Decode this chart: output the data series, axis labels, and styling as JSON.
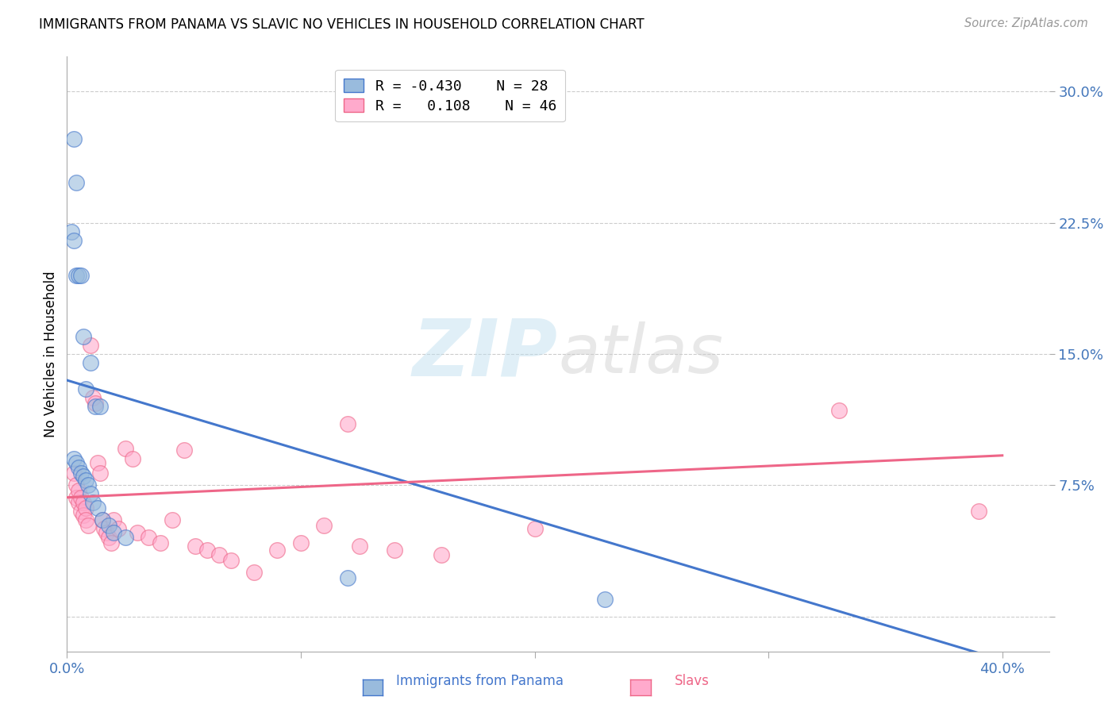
{
  "title": "IMMIGRANTS FROM PANAMA VS SLAVIC NO VEHICLES IN HOUSEHOLD CORRELATION CHART",
  "source": "Source: ZipAtlas.com",
  "ylabel": "No Vehicles in Household",
  "ytick_vals": [
    0.0,
    0.075,
    0.15,
    0.225,
    0.3
  ],
  "ytick_labels": [
    "",
    "7.5%",
    "15.0%",
    "22.5%",
    "30.0%"
  ],
  "xtick_vals": [
    0.0,
    0.1,
    0.2,
    0.3,
    0.4
  ],
  "xtick_labels": [
    "0.0%",
    "",
    "",
    "",
    "40.0%"
  ],
  "xlim": [
    0.0,
    0.42
  ],
  "ylim": [
    -0.02,
    0.32
  ],
  "color_blue": "#99BBDD",
  "color_pink": "#FFAACC",
  "color_line_blue": "#4477CC",
  "color_line_pink": "#EE6688",
  "color_tick_label": "#4477BB",
  "watermark_zip": "ZIP",
  "watermark_atlas": "atlas",
  "legend_label1": "Immigrants from Panama",
  "legend_label2": "Slavs",
  "blue_points_x": [
    0.003,
    0.004,
    0.002,
    0.003,
    0.004,
    0.005,
    0.006,
    0.007,
    0.008,
    0.01,
    0.012,
    0.014,
    0.003,
    0.004,
    0.005,
    0.006,
    0.007,
    0.008,
    0.009,
    0.01,
    0.011,
    0.013,
    0.015,
    0.018,
    0.02,
    0.025,
    0.12,
    0.23
  ],
  "blue_points_y": [
    0.273,
    0.248,
    0.22,
    0.215,
    0.195,
    0.195,
    0.195,
    0.16,
    0.13,
    0.145,
    0.12,
    0.12,
    0.09,
    0.088,
    0.085,
    0.082,
    0.08,
    0.078,
    0.075,
    0.07,
    0.065,
    0.062,
    0.055,
    0.052,
    0.048,
    0.045,
    0.022,
    0.01
  ],
  "pink_points_x": [
    0.003,
    0.004,
    0.004,
    0.005,
    0.005,
    0.006,
    0.006,
    0.007,
    0.007,
    0.008,
    0.008,
    0.009,
    0.01,
    0.011,
    0.012,
    0.013,
    0.014,
    0.015,
    0.016,
    0.017,
    0.018,
    0.019,
    0.02,
    0.022,
    0.025,
    0.028,
    0.03,
    0.035,
    0.04,
    0.045,
    0.05,
    0.055,
    0.06,
    0.065,
    0.07,
    0.08,
    0.09,
    0.1,
    0.11,
    0.12,
    0.125,
    0.14,
    0.16,
    0.2,
    0.33,
    0.39
  ],
  "pink_points_y": [
    0.082,
    0.075,
    0.068,
    0.072,
    0.065,
    0.068,
    0.06,
    0.065,
    0.058,
    0.062,
    0.055,
    0.052,
    0.155,
    0.125,
    0.122,
    0.088,
    0.082,
    0.055,
    0.05,
    0.048,
    0.045,
    0.042,
    0.055,
    0.05,
    0.096,
    0.09,
    0.048,
    0.045,
    0.042,
    0.055,
    0.095,
    0.04,
    0.038,
    0.035,
    0.032,
    0.025,
    0.038,
    0.042,
    0.052,
    0.11,
    0.04,
    0.038,
    0.035,
    0.05,
    0.118,
    0.06
  ],
  "blue_line_x0": 0.0,
  "blue_line_y0": 0.135,
  "blue_line_x1": 0.4,
  "blue_line_y1": -0.025,
  "pink_line_x0": 0.0,
  "pink_line_y0": 0.068,
  "pink_line_x1": 0.4,
  "pink_line_y1": 0.092
}
